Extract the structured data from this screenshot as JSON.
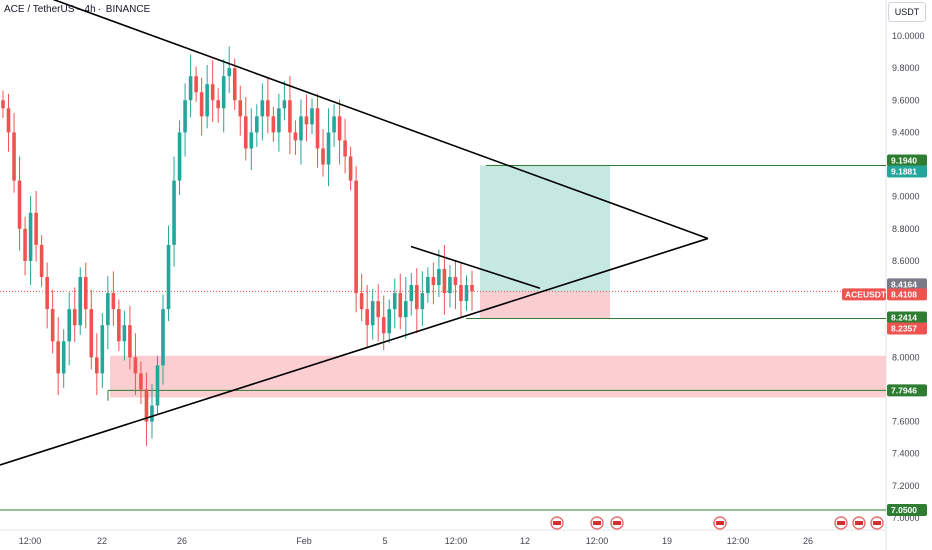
{
  "header": {
    "symbol": "ACE / TetherUS",
    "interval": "4h",
    "exchange": "BINANCE",
    "currency_button": "USDT"
  },
  "colors": {
    "up": "#26a69a",
    "down": "#ef5350",
    "target_zone": "#b2e0da",
    "stop_zone": "#f9c6c8",
    "demand_zone": "#fbc9cc",
    "trendline": "#000000",
    "level_green": "#2e7d32",
    "price_line": "#ef5350"
  },
  "flag_icons": [
    "flag-icon",
    "flag-icon",
    "flag-icon",
    "flag-icon",
    "flag-icon",
    "flag-icon",
    "flag-icon"
  ],
  "chart_data": {
    "type": "candlestick",
    "ylim": [
      6.98,
      10.2
    ],
    "y_ticks": [
      "10.0000",
      "9.8000",
      "9.6000",
      "9.4000",
      "9.2000",
      "9.0000",
      "8.8000",
      "8.6000",
      "8.4000",
      "8.2000",
      "8.0000",
      "7.8000",
      "7.6000",
      "7.4000",
      "7.2000",
      "7.0000"
    ],
    "x_ticks": [
      "12:00",
      "22",
      "26",
      "Feb",
      "5",
      "12:00",
      "12",
      "12:00",
      "19",
      "12:00",
      "26"
    ],
    "price_tags": [
      {
        "label": "9.1940",
        "value": 9.194,
        "color": "#2e7d32"
      },
      {
        "label": "9.1881",
        "value": 9.1881,
        "color": "#26a69a"
      },
      {
        "label": "8.4164",
        "value": 8.4164,
        "color": "#787b86"
      },
      {
        "label": "8.4108",
        "value": 8.4108,
        "color": "#ef5350",
        "symbol": "ACEUSDT"
      },
      {
        "label": "8.2414",
        "value": 8.2414,
        "color": "#2e7d32"
      },
      {
        "label": "8.2357",
        "value": 8.2357,
        "color": "#ef5350"
      },
      {
        "label": "7.7946",
        "value": 7.7946,
        "color": "#2e7d32"
      },
      {
        "label": "7.0500",
        "value": 7.05,
        "color": "#2e7d32"
      }
    ],
    "horizontal_levels": [
      9.194,
      8.2414,
      7.7946,
      7.05
    ],
    "candles_close": [
      9.55,
      9.4,
      9.1,
      8.8,
      8.6,
      8.9,
      8.7,
      8.5,
      8.3,
      8.1,
      7.9,
      8.1,
      8.3,
      8.2,
      8.5,
      8.3,
      8.0,
      7.9,
      8.2,
      8.4,
      8.3,
      8.1,
      8.2,
      8.0,
      7.9,
      7.8,
      7.6,
      7.7,
      7.95,
      8.3,
      8.7,
      9.1,
      9.4,
      9.6,
      9.75,
      9.65,
      9.5,
      9.7,
      9.6,
      9.55,
      9.75,
      9.8,
      9.6,
      9.5,
      9.3,
      9.4,
      9.5,
      9.6,
      9.5,
      9.4,
      9.55,
      9.6,
      9.4,
      9.35,
      9.5,
      9.45,
      9.55,
      9.3,
      9.2,
      9.4,
      9.5,
      9.35,
      9.25,
      9.1,
      8.4,
      8.3,
      8.2,
      8.35,
      8.25,
      8.15,
      8.3,
      8.4,
      8.25,
      8.35,
      8.45,
      8.3,
      8.4,
      8.5,
      8.45,
      8.55,
      8.4,
      8.5,
      8.45,
      8.35,
      8.45,
      8.4108
    ]
  }
}
